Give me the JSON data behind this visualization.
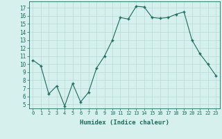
{
  "x": [
    0,
    1,
    2,
    3,
    4,
    5,
    6,
    7,
    8,
    9,
    10,
    11,
    12,
    13,
    14,
    15,
    16,
    17,
    18,
    19,
    20,
    21,
    22,
    23
  ],
  "y": [
    10.5,
    9.8,
    6.3,
    7.3,
    4.8,
    7.6,
    5.3,
    6.5,
    9.5,
    11.0,
    13.0,
    15.8,
    15.6,
    17.2,
    17.1,
    15.8,
    15.7,
    15.8,
    16.2,
    16.5,
    13.0,
    11.3,
    10.0,
    8.6
  ],
  "line_color": "#1a6b5a",
  "marker": "+",
  "marker_size": 3,
  "marker_linewidth": 1.0,
  "line_width": 0.8,
  "bg_color": "#d6f0ee",
  "grid_color": "#b8d8d5",
  "xlabel": "Humidex (Indice chaleur)",
  "ytick_min": 5,
  "ytick_max": 17,
  "ytick_step": 1,
  "xtick_labels": [
    "0",
    "1",
    "2",
    "3",
    "4",
    "5",
    "6",
    "7",
    "8",
    "9",
    "10",
    "11",
    "12",
    "13",
    "14",
    "15",
    "16",
    "17",
    "18",
    "19",
    "20",
    "21",
    "22",
    "23"
  ],
  "xlim": [
    -0.5,
    23.5
  ],
  "ylim": [
    4.5,
    17.8
  ],
  "axis_color": "#1a6b5a",
  "tick_color": "#1a6b5a",
  "label_color": "#1a6b5a",
  "ytick_fontsize": 5.5,
  "xtick_fontsize": 5.0,
  "xlabel_fontsize": 6.5
}
